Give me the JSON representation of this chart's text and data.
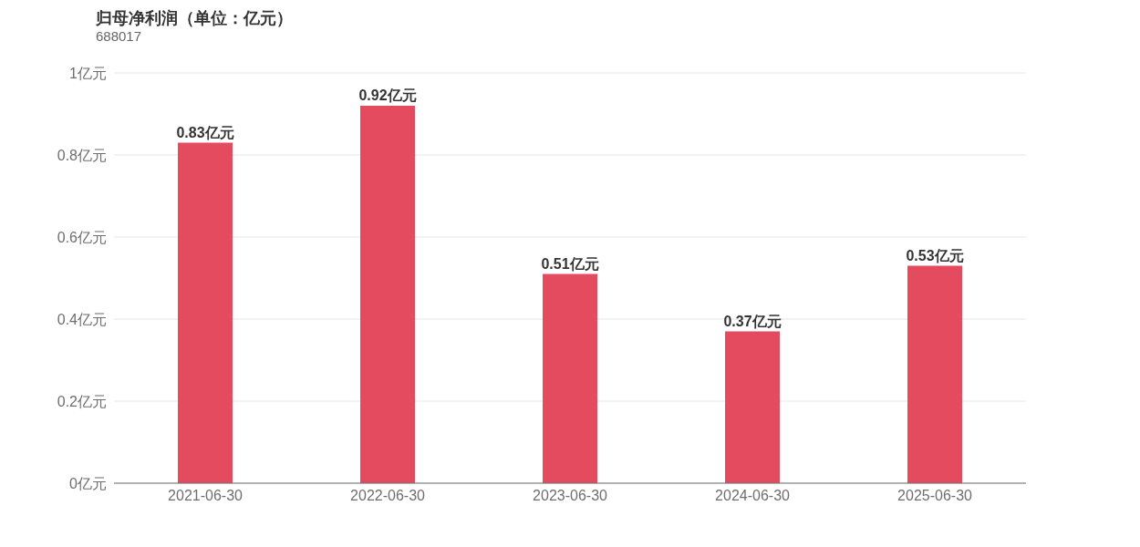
{
  "chart_data": {
    "type": "bar",
    "title": "归母净利润（单位：亿元）",
    "subtitle": "688017",
    "categories": [
      "2021-06-30",
      "2022-06-30",
      "2023-06-30",
      "2024-06-30",
      "2025-06-30"
    ],
    "values": [
      0.83,
      0.92,
      0.51,
      0.37,
      0.53
    ],
    "color": "#e44b5e",
    "value_labels": [
      "0.83亿元",
      "0.92亿元",
      "0.51亿元",
      "0.37亿元",
      "0.53亿元"
    ],
    "ylim": [
      0,
      1
    ],
    "yticks": [
      {
        "value": 0,
        "label": "0亿元"
      },
      {
        "value": 0.2,
        "label": "0.2亿元"
      },
      {
        "value": 0.4,
        "label": "0.4亿元"
      },
      {
        "value": 0.6,
        "label": "0.6亿元"
      },
      {
        "value": 0.8,
        "label": "0.8亿元"
      },
      {
        "value": 1,
        "label": "1亿元"
      }
    ],
    "grid": "y"
  }
}
